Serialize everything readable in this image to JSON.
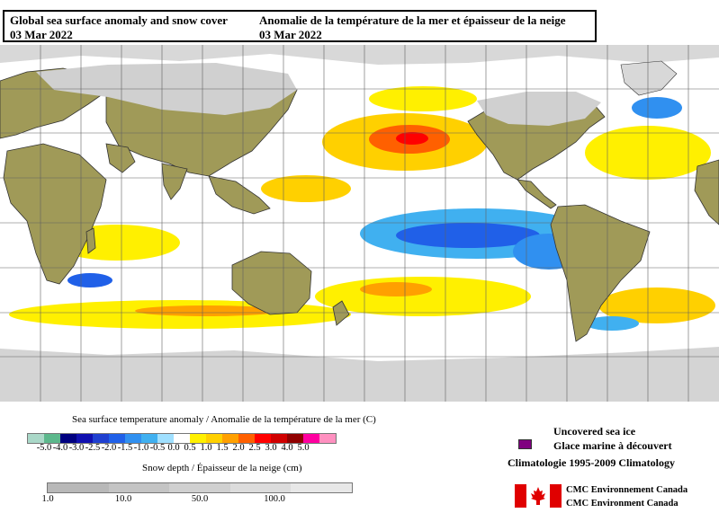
{
  "title": {
    "en_line1": "Global sea surface anomaly and snow cover",
    "en_line2": "03 Mar 2022",
    "fr_line1": "Anomalie de la température de la mer et épaisseur de la neige",
    "fr_line2": "03 Mar 2022"
  },
  "sst_legend": {
    "title": "Sea surface temperature anomaly / Anomalie de la température de la mer (C)",
    "colors": [
      "#aad8c8",
      "#5cb88c",
      "#000080",
      "#1010b0",
      "#2040d0",
      "#2060e8",
      "#3090f0",
      "#40b0f0",
      "#a0e0ff",
      "#ffffff",
      "#fff000",
      "#ffd000",
      "#ffa000",
      "#ff6000",
      "#ff0000",
      "#d00000",
      "#900000",
      "#ff00a0",
      "#ff90c0"
    ],
    "ticks": [
      "-5.0",
      "-4.0",
      "-3.0",
      "-2.5",
      "-2.0",
      "-1.5",
      "-1.0",
      "-0.5",
      "0.0",
      "0.5",
      "1.0",
      "1.5",
      "2.0",
      "2.5",
      "3.0",
      "4.0",
      "5.0"
    ]
  },
  "snow_legend": {
    "title": "Snow depth / Épaisseur de la neige (cm)",
    "colors": [
      "#b8b8b8",
      "#c4c4c4",
      "#d0d0d0",
      "#dcdcdc",
      "#e8e8e8"
    ],
    "ticks": [
      "1.0",
      "10.0",
      "50.0",
      "100.0"
    ]
  },
  "sea_ice": {
    "label_en": "Uncovered sea ice",
    "label_fr": "Glace marine à découvert",
    "color": "#800080"
  },
  "climatology": "Climatologie 1995-2009 Climatology",
  "organization": {
    "line1": "CMC Environnement Canada",
    "line2": "CMC Environment Canada"
  },
  "map_colors": {
    "land": "#a09a58",
    "snow": "#d0d0d0",
    "ocean": "#ffffff",
    "grid": "#606060"
  }
}
